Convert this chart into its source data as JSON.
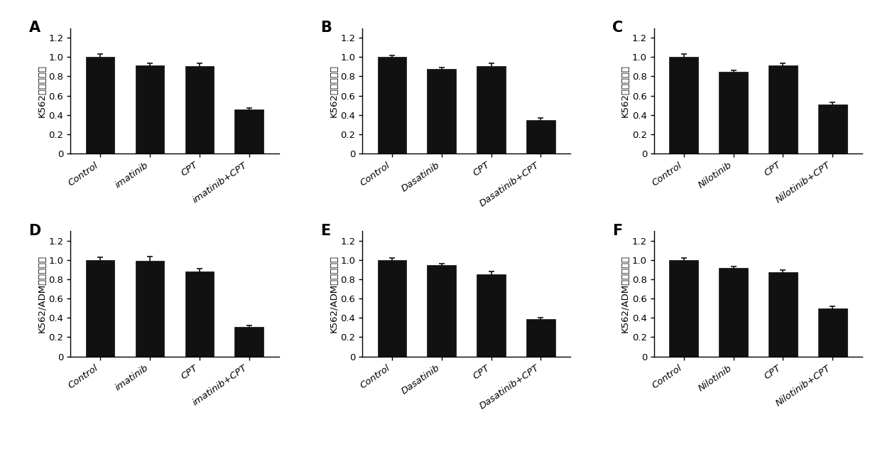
{
  "panels": [
    {
      "label": "A",
      "ylabel": "K562细胞存活率",
      "categories": [
        "Control",
        "imatinib",
        "CPT",
        "imatinib+CPT"
      ],
      "values": [
        1.0,
        0.915,
        0.91,
        0.455
      ],
      "errors": [
        0.03,
        0.02,
        0.025,
        0.02
      ],
      "ylim": [
        0,
        1.3
      ],
      "yticks": [
        0,
        0.2,
        0.4,
        0.6,
        0.8,
        1.0,
        1.2
      ]
    },
    {
      "label": "B",
      "ylabel": "K562细胞存活率",
      "categories": [
        "Control",
        "Dasatinib",
        "CPT",
        "Dasatinib+CPT"
      ],
      "values": [
        1.0,
        0.875,
        0.905,
        0.345
      ],
      "errors": [
        0.02,
        0.015,
        0.03,
        0.02
      ],
      "ylim": [
        0,
        1.3
      ],
      "yticks": [
        0,
        0.2,
        0.4,
        0.6,
        0.8,
        1.0,
        1.2
      ]
    },
    {
      "label": "C",
      "ylabel": "K562细胞存活率",
      "categories": [
        "Control",
        "Nilotinib",
        "CPT",
        "Nilotinib+CPT"
      ],
      "values": [
        1.0,
        0.845,
        0.915,
        0.51
      ],
      "errors": [
        0.03,
        0.015,
        0.02,
        0.02
      ],
      "ylim": [
        0,
        1.3
      ],
      "yticks": [
        0,
        0.2,
        0.4,
        0.6,
        0.8,
        1.0,
        1.2
      ]
    },
    {
      "label": "D",
      "ylabel": "K562/ADM细胞存活率",
      "categories": [
        "Control",
        "imatinib",
        "CPT",
        "imatinib+CPT"
      ],
      "values": [
        1.0,
        0.995,
        0.88,
        0.305
      ],
      "errors": [
        0.03,
        0.04,
        0.03,
        0.02
      ],
      "ylim": [
        0,
        1.3
      ],
      "yticks": [
        0,
        0.2,
        0.4,
        0.6,
        0.8,
        1.0,
        1.2
      ]
    },
    {
      "label": "E",
      "ylabel": "K562/ADM细胞存活率",
      "categories": [
        "Control",
        "Dasatinib",
        "CPT",
        "Dasatinib+CPT"
      ],
      "values": [
        1.0,
        0.945,
        0.855,
        0.385
      ],
      "errors": [
        0.025,
        0.02,
        0.025,
        0.02
      ],
      "ylim": [
        0,
        1.3
      ],
      "yticks": [
        0,
        0.2,
        0.4,
        0.6,
        0.8,
        1.0,
        1.2
      ]
    },
    {
      "label": "F",
      "ylabel": "K562/ADM细胞存活率",
      "categories": [
        "Control",
        "Nilotinib",
        "CPT",
        "Nilotinib+CPT"
      ],
      "values": [
        1.0,
        0.915,
        0.875,
        0.495
      ],
      "errors": [
        0.025,
        0.02,
        0.02,
        0.025
      ],
      "ylim": [
        0,
        1.3
      ],
      "yticks": [
        0,
        0.2,
        0.4,
        0.6,
        0.8,
        1.0,
        1.2
      ]
    }
  ],
  "bar_color": "#111111",
  "bar_edgecolor": "#111111",
  "error_color": "#111111",
  "background_color": "#ffffff",
  "label_fontsize": 15,
  "tick_fontsize": 9.5,
  "ylabel_fontsize": 9.5,
  "bar_width": 0.58
}
